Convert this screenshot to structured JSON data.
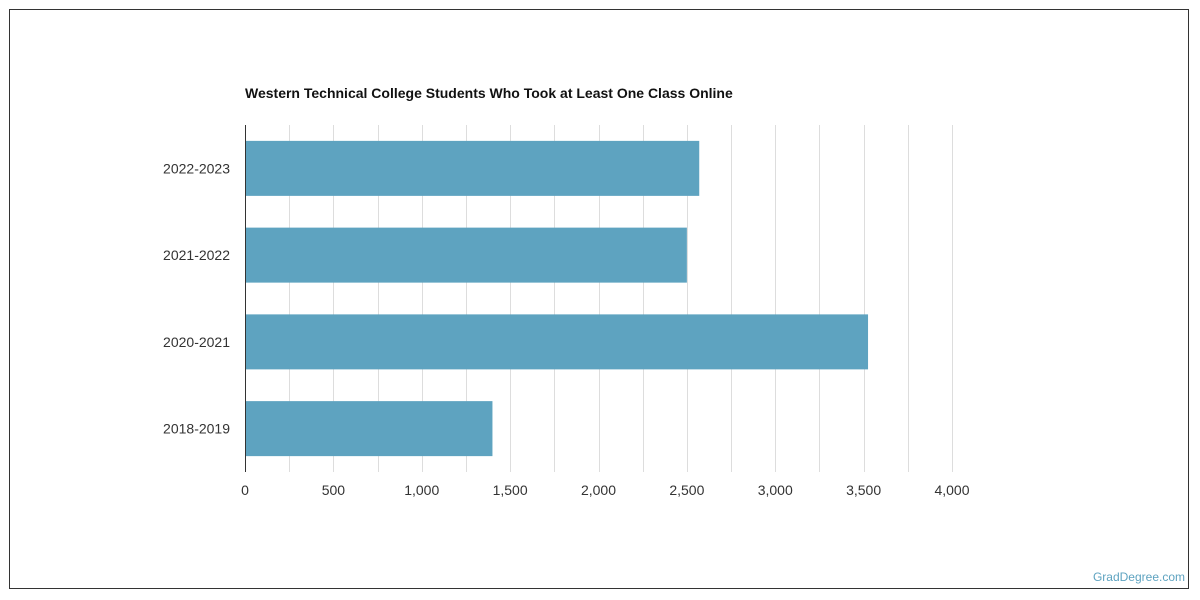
{
  "chart_data": {
    "type": "bar",
    "orientation": "horizontal",
    "title": "Western Technical College Students Who Took at Least One Class Online",
    "xlabel": "",
    "ylabel": "",
    "categories": [
      "2022-2023",
      "2021-2022",
      "2020-2021",
      "2018-2019"
    ],
    "values": [
      2570,
      2500,
      3525,
      1400
    ],
    "xlim": [
      0,
      4000
    ],
    "x_ticks": [
      0,
      500,
      1000,
      1500,
      2000,
      2500,
      3000,
      3500,
      4000
    ],
    "x_tick_labels": [
      "0",
      "500",
      "1,000",
      "1,500",
      "2,000",
      "2,500",
      "3,000",
      "3,500",
      "4,000"
    ],
    "grid": true,
    "bar_color": "#5ea3c0",
    "grid_color": "#dddddd",
    "legend": "none"
  },
  "watermark": "GradDegree.com"
}
